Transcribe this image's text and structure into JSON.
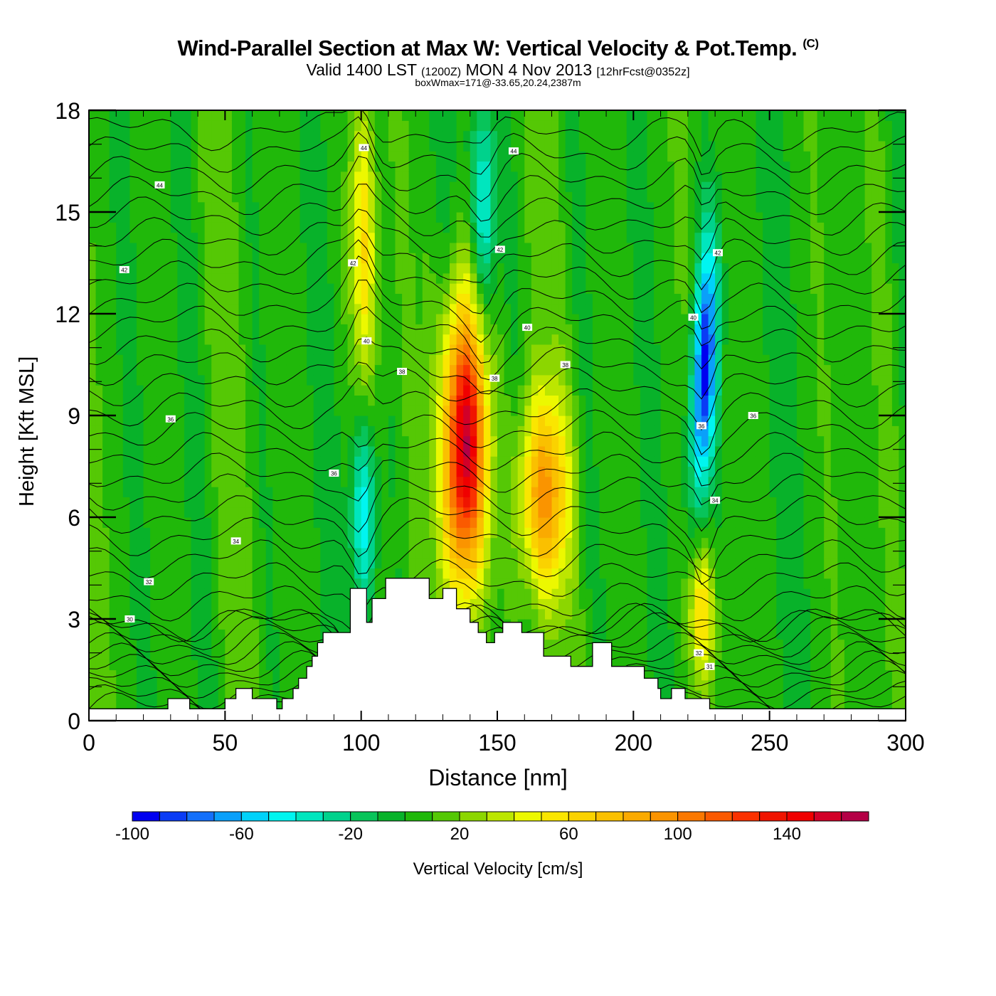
{
  "header": {
    "title": "Wind-Parallel Section at Max W: Vertical Velocity & Pot.Temp.",
    "copyright_mark": "(C)",
    "subtitle_main_a": "Valid 1400 LST",
    "subtitle_zulu": "(1200Z)",
    "subtitle_main_b": "MON 4 Nov 2013",
    "subtitle_forecast": "[12hrFcst@0352z]",
    "box_info": "boxWmax=171@-33.65,20.24,2387m"
  },
  "chart_data": {
    "type": "heatmap",
    "title": "Wind-Parallel Section at Max W: Vertical Velocity & Pot.Temp.",
    "xlabel": "Distance [nm]",
    "ylabel": "Height [Kft MSL]",
    "xlim": [
      0,
      300
    ],
    "ylim": [
      0,
      18
    ],
    "x_ticks": [
      "0",
      "50",
      "100",
      "150",
      "200",
      "250",
      "300"
    ],
    "x_tick_values": [
      0,
      50,
      100,
      150,
      200,
      250,
      300
    ],
    "y_ticks": [
      "0",
      "3",
      "6",
      "9",
      "12",
      "15",
      "18"
    ],
    "y_tick_values": [
      0,
      3,
      6,
      9,
      12,
      15,
      18
    ],
    "colorbar": {
      "label": "Vertical Velocity [cm/s]",
      "min": -100,
      "max": 170,
      "step": 10,
      "tick_labels": [
        "-100",
        "-60",
        "-20",
        "20",
        "60",
        "100",
        "140"
      ],
      "tick_values": [
        -100,
        -60,
        -20,
        20,
        60,
        100,
        140
      ],
      "colors": [
        "#0000f0",
        "#0a3cf5",
        "#1470fa",
        "#0aa0fa",
        "#00d2fa",
        "#00f5f0",
        "#00e6be",
        "#00d28c",
        "#08c45a",
        "#08b22a",
        "#20b80a",
        "#55c805",
        "#8cd600",
        "#bce600",
        "#ecf800",
        "#fae600",
        "#fad200",
        "#fac000",
        "#faaa00",
        "#fa9400",
        "#fa7800",
        "#fa5a00",
        "#fa3200",
        "#f01400",
        "#f00000",
        "#d20028",
        "#b40046"
      ]
    },
    "vertical_velocity_features": [
      {
        "name": "updraft-core-main",
        "x_nm": 138,
        "z_kft_bottom": 4.0,
        "z_kft_top": 12.2,
        "max_cms": 171
      },
      {
        "name": "updraft-secondary",
        "x_nm": 167,
        "z_kft_bottom": 3.8,
        "z_kft_top": 9.5,
        "max_cms": 90
      },
      {
        "name": "updraft-upper-left",
        "x_nm": 101,
        "z_kft_bottom": 10.0,
        "z_kft_top": 18,
        "max_cms": 55
      },
      {
        "name": "updraft-low-right",
        "x_nm": 225,
        "z_kft_bottom": 1.5,
        "z_kft_top": 5.0,
        "max_cms": 55
      },
      {
        "name": "downdraft-left",
        "x_nm": 101,
        "z_kft_bottom": 3.2,
        "z_kft_top": 9.0,
        "max_cms": -50
      },
      {
        "name": "downdraft-upper-mid",
        "x_nm": 145,
        "z_kft_bottom": 12,
        "z_kft_top": 18,
        "max_cms": -45
      },
      {
        "name": "downdraft-right",
        "x_nm": 226,
        "z_kft_bottom": 6.5,
        "z_kft_top": 14,
        "max_cms": -95
      }
    ],
    "terrain_profile_kft": {
      "x_nm": [
        0,
        29,
        29,
        37,
        37,
        40,
        40,
        50,
        50,
        54,
        54,
        60,
        60,
        69,
        69,
        71,
        71,
        75,
        75,
        77,
        77,
        80,
        80,
        82,
        82,
        84,
        84,
        86,
        86,
        88,
        88,
        96,
        96,
        102,
        102,
        104,
        104,
        109,
        109,
        113,
        113,
        125,
        125,
        130,
        130,
        135,
        135,
        140,
        140,
        143,
        143,
        146,
        146,
        149,
        149,
        152,
        152,
        154,
        154,
        157,
        157,
        159,
        159,
        167,
        167,
        170,
        170,
        177,
        177,
        185,
        185,
        192,
        192,
        204,
        204,
        209,
        209,
        210,
        210,
        212,
        212,
        214,
        214,
        216,
        216,
        219,
        219,
        228,
        228,
        233,
        233,
        300
      ],
      "z_kft": [
        0.35,
        0.35,
        0.65,
        0.65,
        0.35,
        0.35,
        0.35,
        0.35,
        0.65,
        0.65,
        0.95,
        0.95,
        0.65,
        0.65,
        0.35,
        0.35,
        0.65,
        0.65,
        0.95,
        0.95,
        1.25,
        1.25,
        1.6,
        1.6,
        1.9,
        1.9,
        2.3,
        2.3,
        2.6,
        2.6,
        2.6,
        2.6,
        3.9,
        3.9,
        2.9,
        2.9,
        3.6,
        3.6,
        4.2,
        4.2,
        4.2,
        4.2,
        3.6,
        3.6,
        3.9,
        3.9,
        3.3,
        3.3,
        2.9,
        2.9,
        2.6,
        2.6,
        2.3,
        2.3,
        2.6,
        2.6,
        2.9,
        2.9,
        2.9,
        2.9,
        2.9,
        2.9,
        2.6,
        2.6,
        1.9,
        1.9,
        1.9,
        1.9,
        1.6,
        1.6,
        2.3,
        2.3,
        1.6,
        1.6,
        1.25,
        1.25,
        0.95,
        0.95,
        0.65,
        0.65,
        0.65,
        0.65,
        0.95,
        0.95,
        0.95,
        0.95,
        0.65,
        0.65,
        0.35,
        0.35,
        0.35,
        0.35
      ]
    },
    "theta_contour_labels": [
      {
        "text": "44",
        "x_nm": 26,
        "z_kft": 15.8
      },
      {
        "text": "42",
        "x_nm": 13,
        "z_kft": 13.3
      },
      {
        "text": "36",
        "x_nm": 30,
        "z_kft": 8.9
      },
      {
        "text": "34",
        "x_nm": 54,
        "z_kft": 5.3
      },
      {
        "text": "32",
        "x_nm": 22,
        "z_kft": 4.1
      },
      {
        "text": "30",
        "x_nm": 15,
        "z_kft": 3.0
      },
      {
        "text": "44",
        "x_nm": 101,
        "z_kft": 16.9
      },
      {
        "text": "44",
        "x_nm": 156,
        "z_kft": 16.8
      },
      {
        "text": "42",
        "x_nm": 97,
        "z_kft": 13.5
      },
      {
        "text": "42",
        "x_nm": 151,
        "z_kft": 13.9
      },
      {
        "text": "40",
        "x_nm": 102,
        "z_kft": 11.2
      },
      {
        "text": "40",
        "x_nm": 161,
        "z_kft": 11.6
      },
      {
        "text": "40",
        "x_nm": 222,
        "z_kft": 11.9
      },
      {
        "text": "42",
        "x_nm": 231,
        "z_kft": 13.8
      },
      {
        "text": "38",
        "x_nm": 115,
        "z_kft": 10.3
      },
      {
        "text": "38",
        "x_nm": 149,
        "z_kft": 10.1
      },
      {
        "text": "38",
        "x_nm": 175,
        "z_kft": 10.5
      },
      {
        "text": "36",
        "x_nm": 90,
        "z_kft": 7.3
      },
      {
        "text": "36",
        "x_nm": 225,
        "z_kft": 8.7
      },
      {
        "text": "36",
        "x_nm": 244,
        "z_kft": 9.0
      },
      {
        "text": "34",
        "x_nm": 230,
        "z_kft": 6.5
      },
      {
        "text": "32",
        "x_nm": 224,
        "z_kft": 2.0
      },
      {
        "text": "31",
        "x_nm": 228,
        "z_kft": 1.6
      }
    ]
  }
}
